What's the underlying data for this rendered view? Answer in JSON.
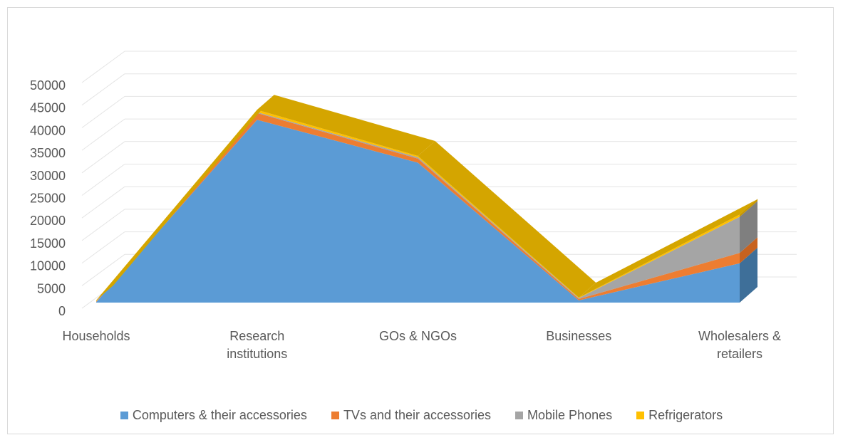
{
  "chart_data": {
    "type": "area",
    "title": "",
    "xlabel": "",
    "ylabel": "",
    "three_d": true,
    "stacked": true,
    "ylim": [
      0,
      50000
    ],
    "yticks": [
      "0",
      "5000",
      "10000",
      "15000",
      "20000",
      "25000",
      "30000",
      "35000",
      "40000",
      "45000",
      "50000"
    ],
    "categories": [
      "Households",
      "Research institutions",
      "GOs & NGOs",
      "Businesses",
      "Wholesalers & retailers"
    ],
    "category_lines": [
      [
        "Households"
      ],
      [
        "Research",
        "institutions"
      ],
      [
        "GOs & NGOs"
      ],
      [
        "Businesses"
      ],
      [
        "Wholesalers &",
        "retailers"
      ]
    ],
    "grid": true,
    "legend_position": "bottom",
    "series": [
      {
        "name": "Computers & their accessories",
        "color": "#5b9bd5",
        "values": [
          100,
          40500,
          31000,
          500,
          8700
        ]
      },
      {
        "name": "TVs and their accessories",
        "color": "#ed7d31",
        "values": [
          100,
          1500,
          900,
          300,
          2300
        ]
      },
      {
        "name": "Mobile Phones",
        "color": "#a5a5a5",
        "values": [
          100,
          200,
          300,
          200,
          8000
        ]
      },
      {
        "name": "Refrigerators",
        "color": "#ffc000",
        "values": [
          200,
          500,
          300,
          100,
          500
        ]
      }
    ],
    "top_face_color": "#d4a500"
  }
}
